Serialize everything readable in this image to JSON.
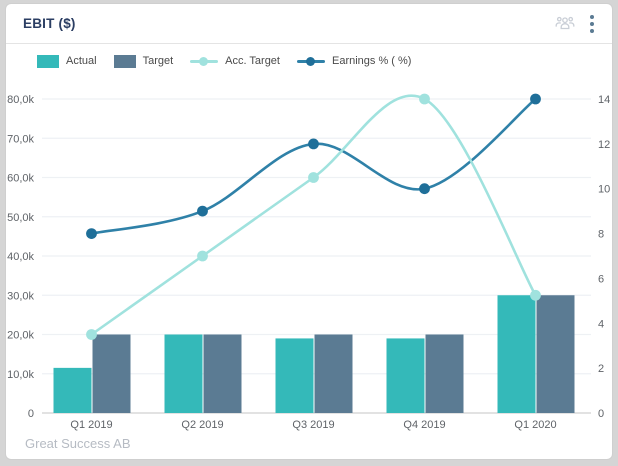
{
  "card": {
    "title": "EBIT ($)",
    "footer": "Great Success AB"
  },
  "header_icons": [
    {
      "name": "group-icon"
    },
    {
      "name": "kebab-menu-icon"
    }
  ],
  "colors": {
    "actual_teal": "#34b9b9",
    "target_slate": "#5b7b93",
    "acc_target_light_teal": "#a0e2de",
    "earnings_blue": "#2f81a8",
    "earnings_dot": "#1f6f99",
    "title_navy": "#2b3e63",
    "grid_line": "#eef1f4",
    "axis_line": "#d9d9d9",
    "tick_text": "#5f6368",
    "group_icon_gray": "#c9ced6"
  },
  "chart_data": {
    "type": "combo",
    "title": "EBIT ($)",
    "categories": [
      "Q1 2019",
      "Q2 2019",
      "Q3 2019",
      "Q4 2019",
      "Q1 2020"
    ],
    "series": [
      {
        "name": "Actual",
        "type": "bar",
        "axis": "left",
        "color": "#34b9b9",
        "values": [
          11500,
          20000,
          19000,
          19000,
          30000
        ]
      },
      {
        "name": "Target",
        "type": "bar",
        "axis": "left",
        "color": "#5b7b93",
        "values": [
          20000,
          20000,
          20000,
          20000,
          30000
        ]
      },
      {
        "name": "Acc. Target",
        "type": "line",
        "axis": "left",
        "color": "#a0e2de",
        "dot_color": "#a0e2de",
        "values": [
          20000,
          40000,
          60000,
          80000,
          30000
        ]
      },
      {
        "name": "Earnings % ( %)",
        "type": "line",
        "axis": "right",
        "color": "#2f81a8",
        "dot_color": "#1f6f99",
        "values": [
          8,
          9,
          12,
          10,
          14
        ]
      }
    ],
    "left_axis": {
      "min": 0,
      "max": 80000,
      "tick_labels": [
        "0",
        "10,0k",
        "20,0k",
        "30,0k",
        "40,0k",
        "50,0k",
        "60,0k",
        "70,0k",
        "80,0k"
      ]
    },
    "right_axis": {
      "min": 0,
      "max": 14,
      "tick_labels": [
        "0",
        "2",
        "4",
        "6",
        "8",
        "10",
        "12",
        "14"
      ]
    },
    "grid": true,
    "legend_position": "top-left"
  }
}
